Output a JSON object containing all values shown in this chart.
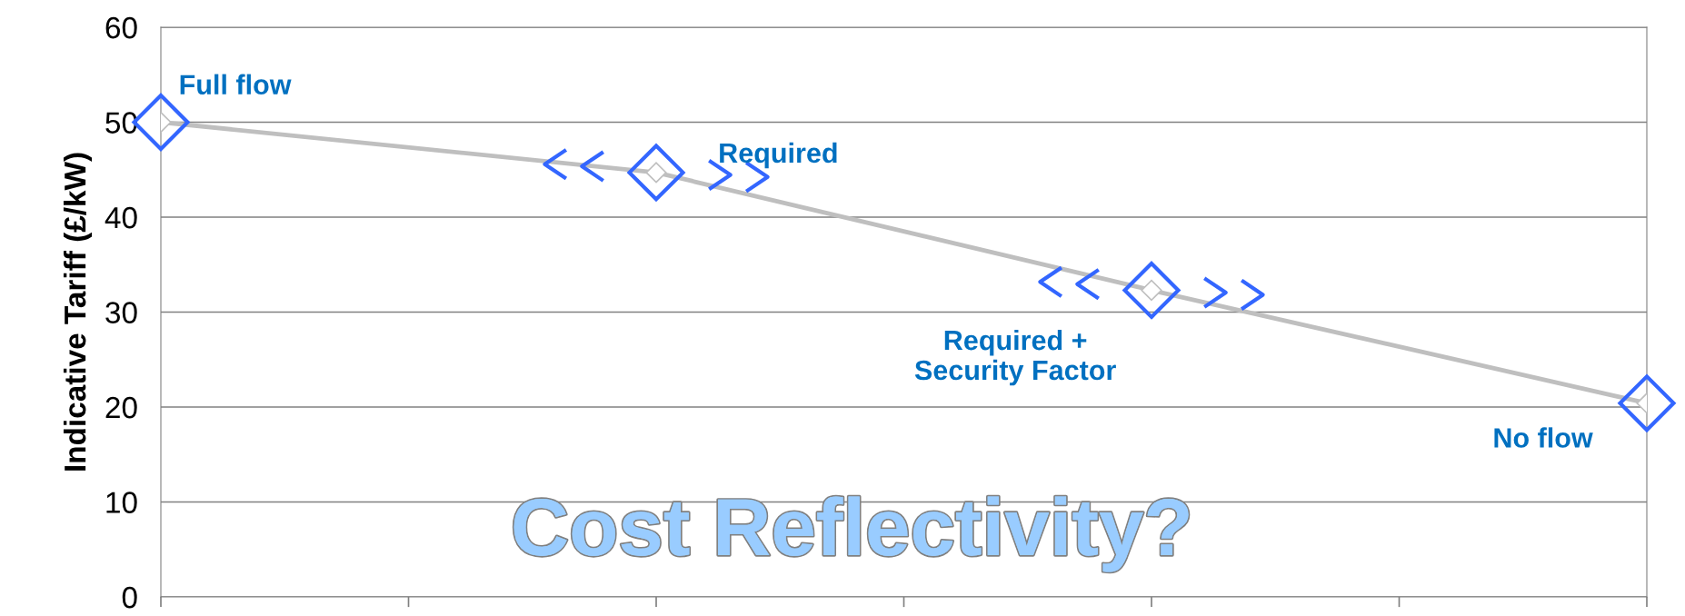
{
  "chart_data": {
    "type": "line",
    "ylabel": "Indicative Tariff (£/kW)",
    "categories": [
      null,
      null,
      null,
      null,
      null,
      null,
      null
    ],
    "series": [
      {
        "color": "#bfbfbf",
        "values": [
          50,
          null,
          44.7,
          null,
          32.3,
          null,
          20.4
        ]
      }
    ],
    "ylim": [
      0,
      60
    ],
    "yticks": [
      0,
      10,
      20,
      30,
      40,
      50,
      60
    ],
    "grid": "y",
    "marker": "diamond",
    "line_style": "solid",
    "annotations": [
      "Full flow",
      "Required",
      "Required +\nSecurity Factor",
      "No flow",
      "Cost Reflectivity?"
    ]
  }
}
